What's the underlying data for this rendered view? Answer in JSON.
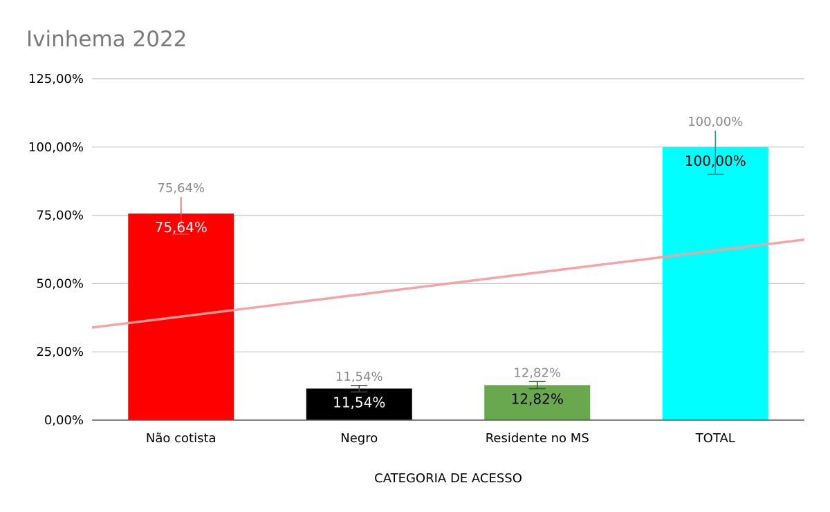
{
  "chart_data": {
    "type": "bar",
    "title": "Ivinhema 2022",
    "xlabel": "CATEGORIA DE ACESSO",
    "ylabel": "",
    "ylim": [
      0,
      125
    ],
    "yticks": [
      0,
      25,
      50,
      75,
      100,
      125
    ],
    "ytick_labels": [
      "0,00%",
      "25,00%",
      "50,00%",
      "75,00%",
      "100,00%",
      "125,00%"
    ],
    "grid": true,
    "categories": [
      "Não cotista",
      "Negro",
      "Residente no MS",
      "TOTAL"
    ],
    "values": [
      75.64,
      11.54,
      12.82,
      100.0
    ],
    "value_labels": [
      "75,64%",
      "11,54%",
      "12,82%",
      "100,00%"
    ],
    "bar_colors": [
      "#ff0000",
      "#000000",
      "#6aa84f",
      "#00ffff"
    ],
    "inside_label_colors": [
      "#ffffff",
      "#ffffff",
      "#000000",
      "#000000"
    ],
    "error_bars": [
      {
        "low": 68.1,
        "high": 81.7,
        "color": "#ff4444"
      },
      {
        "low": 10.3,
        "high": 12.7,
        "color": "#444444"
      },
      {
        "low": 11.5,
        "high": 14.1,
        "color": "#2a5a1a"
      },
      {
        "low": 90.0,
        "high": 106.0,
        "color": "#1a9a9a"
      }
    ],
    "trendline": {
      "type": "linear",
      "y_start": 33.9,
      "y_end": 66.1,
      "color": "#f4a0a0"
    }
  }
}
